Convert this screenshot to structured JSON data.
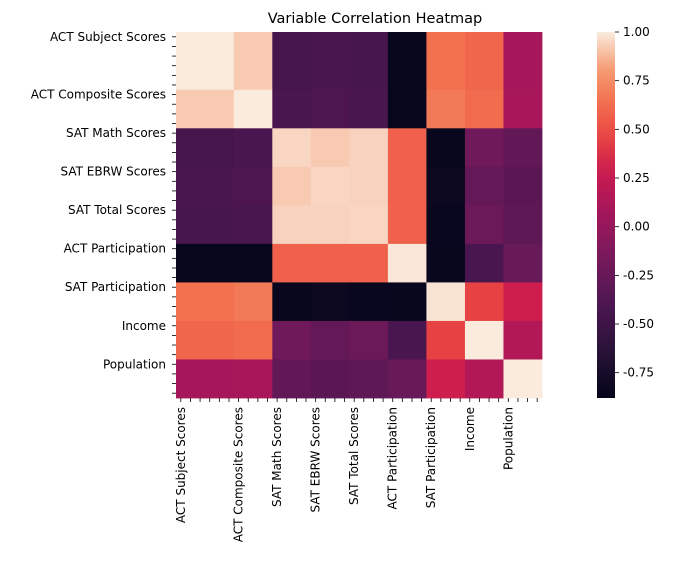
{
  "chart_data": {
    "type": "heatmap",
    "title": "Variable Correlation Heatmap",
    "xlabel": "",
    "ylabel": "",
    "categories": [
      "ACT Subject Scores",
      "ACT Composite Scores",
      "SAT Math Scores",
      "SAT EBRW Scores",
      "SAT Total Scores",
      "ACT Participation",
      "SAT Participation",
      "Income",
      "Population"
    ],
    "group_sizes": [
      6,
      4,
      4,
      4,
      4,
      4,
      4,
      4,
      4
    ],
    "matrix": [
      [
        1.0,
        0.92,
        -0.45,
        -0.42,
        -0.44,
        -0.86,
        0.65,
        0.6,
        0.08
      ],
      [
        0.92,
        1.0,
        -0.42,
        -0.4,
        -0.42,
        -0.86,
        0.68,
        0.62,
        0.1
      ],
      [
        -0.45,
        -0.42,
        0.95,
        0.92,
        0.94,
        0.58,
        -0.85,
        -0.2,
        -0.28
      ],
      [
        -0.42,
        -0.4,
        0.92,
        0.95,
        0.94,
        0.58,
        -0.83,
        -0.26,
        -0.32
      ],
      [
        -0.44,
        -0.42,
        0.94,
        0.94,
        0.95,
        0.58,
        -0.84,
        -0.23,
        -0.3
      ],
      [
        -0.86,
        -0.86,
        0.58,
        0.58,
        0.58,
        0.99,
        -0.85,
        -0.42,
        -0.25
      ],
      [
        0.65,
        0.68,
        -0.85,
        -0.83,
        -0.84,
        -0.85,
        0.98,
        0.45,
        0.3
      ],
      [
        0.6,
        0.62,
        -0.2,
        -0.26,
        -0.23,
        -0.42,
        0.45,
        1.0,
        0.15
      ],
      [
        0.08,
        0.1,
        -0.28,
        -0.32,
        -0.3,
        -0.25,
        0.3,
        0.15,
        1.0
      ]
    ],
    "colorbar": {
      "min": -0.88,
      "max": 1.0,
      "ticks": [
        "1.00",
        "0.75",
        "0.50",
        "0.25",
        "0.00",
        "-0.25",
        "-0.50",
        "-0.75"
      ],
      "tick_values": [
        1.0,
        0.75,
        0.5,
        0.25,
        0.0,
        -0.25,
        -0.5,
        -0.75
      ]
    }
  }
}
